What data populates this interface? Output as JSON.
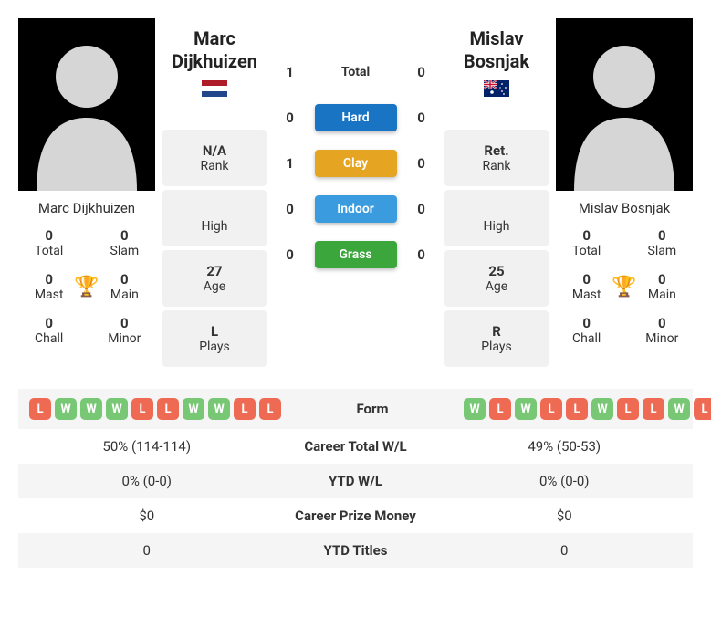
{
  "colors": {
    "win": "#78c774",
    "loss": "#ef6a53",
    "hard": "#1a74c4",
    "clay": "#e6a423",
    "indoor": "#3a9cdf",
    "grass": "#3aa63c",
    "alt_row": "#f5f5f5",
    "trophy": "#5b8dd6"
  },
  "player1": {
    "name_full": "Marc Dijkhuizen",
    "name_first": "Marc",
    "name_last": "Dijkhuizen",
    "flag": "nl",
    "titles": {
      "total": {
        "val": "0",
        "lab": "Total"
      },
      "slam": {
        "val": "0",
        "lab": "Slam"
      },
      "mast": {
        "val": "0",
        "lab": "Mast"
      },
      "main": {
        "val": "0",
        "lab": "Main"
      },
      "chall": {
        "val": "0",
        "lab": "Chall"
      },
      "minor": {
        "val": "0",
        "lab": "Minor"
      }
    },
    "info": {
      "rank": {
        "val": "N/A",
        "lab": "Rank"
      },
      "high": {
        "val": "",
        "lab": "High"
      },
      "age": {
        "val": "27",
        "lab": "Age"
      },
      "plays": {
        "val": "L",
        "lab": "Plays"
      }
    },
    "form": [
      "L",
      "W",
      "W",
      "W",
      "L",
      "L",
      "W",
      "W",
      "L",
      "L"
    ]
  },
  "player2": {
    "name_full": "Mislav Bosnjak",
    "name_first": "Mislav",
    "name_last": "Bosnjak",
    "flag": "au",
    "titles": {
      "total": {
        "val": "0",
        "lab": "Total"
      },
      "slam": {
        "val": "0",
        "lab": "Slam"
      },
      "mast": {
        "val": "0",
        "lab": "Mast"
      },
      "main": {
        "val": "0",
        "lab": "Main"
      },
      "chall": {
        "val": "0",
        "lab": "Chall"
      },
      "minor": {
        "val": "0",
        "lab": "Minor"
      }
    },
    "info": {
      "rank": {
        "val": "Ret.",
        "lab": "Rank"
      },
      "high": {
        "val": "",
        "lab": "High"
      },
      "age": {
        "val": "25",
        "lab": "Age"
      },
      "plays": {
        "val": "R",
        "lab": "Plays"
      }
    },
    "form": [
      "W",
      "L",
      "W",
      "L",
      "L",
      "W",
      "L",
      "L",
      "W",
      "L"
    ]
  },
  "h2h": {
    "total": {
      "p1": "1",
      "label": "Total",
      "p2": "0",
      "color": null
    },
    "hard": {
      "p1": "0",
      "label": "Hard",
      "p2": "0",
      "color": "hard"
    },
    "clay": {
      "p1": "1",
      "label": "Clay",
      "p2": "0",
      "color": "clay"
    },
    "indoor": {
      "p1": "0",
      "label": "Indoor",
      "p2": "0",
      "color": "indoor"
    },
    "grass": {
      "p1": "0",
      "label": "Grass",
      "p2": "0",
      "color": "grass"
    }
  },
  "table": [
    {
      "label": "Form",
      "type": "form"
    },
    {
      "label": "Career Total W/L",
      "p1": "50% (114-114)",
      "p2": "49% (50-53)"
    },
    {
      "label": "YTD W/L",
      "p1": "0% (0-0)",
      "p2": "0% (0-0)"
    },
    {
      "label": "Career Prize Money",
      "p1": "$0",
      "p2": "$0"
    },
    {
      "label": "YTD Titles",
      "p1": "0",
      "p2": "0"
    }
  ]
}
